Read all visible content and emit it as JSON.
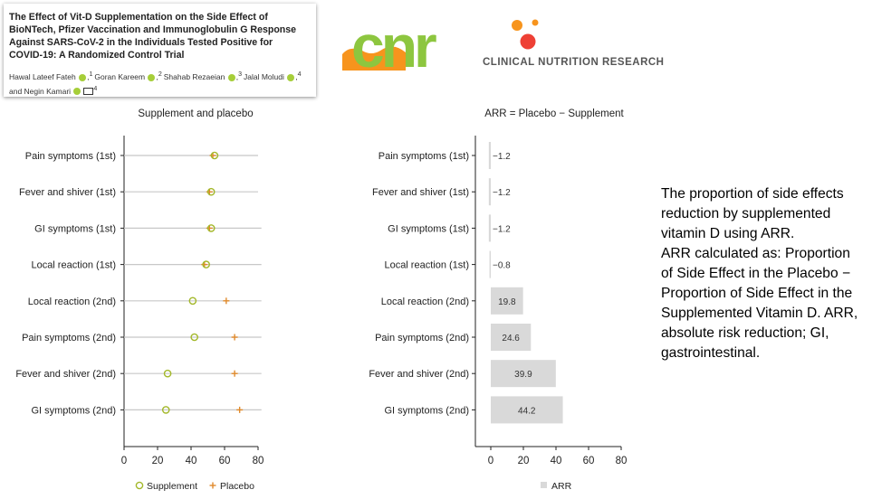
{
  "paper": {
    "title": "The Effect of Vit-D Supplementation on the Side Effect of\nBioNTech, Pfizer Vaccination and Immunoglobulin G Response\nAgainst SARS-CoV-2 in the Individuals Tested Positive for\nCOVID-19: A Randomized Control Trial",
    "authors": [
      {
        "name": "Hawal Lateef Fateh",
        "aff": "1"
      },
      {
        "name": "Goran Kareem",
        "aff": "2"
      },
      {
        "name": "Shahab Rezaeian",
        "aff": "3"
      },
      {
        "name": "Jalal Moludi",
        "aff": "4"
      },
      {
        "name": "Negin Kamari",
        "aff": "4"
      }
    ],
    "author_separator": ",",
    "author_conjunction": "and"
  },
  "logo": {
    "wordmark": "cnr",
    "subtitle": "CLINICAL NUTRITION RESEARCH",
    "colors": {
      "green": "#8dc63f",
      "orange": "#f7941d",
      "red": "#ee4035"
    }
  },
  "side_text": "The proportion of side effects reduction by supplemented vitamin D using ARR.\nARR calculated as: Proportion of Side Effect in the Placebo − Proportion of Side Effect in the Supplemented Vitamin D. ARR, absolute risk reduction; GI, gastrointestinal.",
  "chart_data": [
    {
      "type": "scatter",
      "title": "Supplement and placebo",
      "categories": [
        "Pain symptoms (1st)",
        "Fever and shiver (1st)",
        "GI symptoms (1st)",
        "Local reaction (1st)",
        "Local reaction (2nd)",
        "Pain symptoms (2nd)",
        "Fever and shiver (2nd)",
        "GI symptoms (2nd)"
      ],
      "range_line_max": [
        80,
        80,
        82,
        82,
        82,
        82,
        82,
        82
      ],
      "series": [
        {
          "name": "Supplement",
          "marker": "circle",
          "color": "#a3b82a",
          "values": [
            54,
            52,
            52,
            49,
            41,
            42,
            26,
            25
          ]
        },
        {
          "name": "Placebo",
          "marker": "plus",
          "color": "#e08a2c",
          "values": [
            53,
            51,
            51,
            48,
            61,
            66,
            66,
            69
          ]
        }
      ],
      "xlim": [
        0,
        80
      ],
      "xticks": [
        0,
        20,
        40,
        60,
        80
      ],
      "legend_position": "bottom",
      "line_color": "#c8c8c8"
    },
    {
      "type": "bar",
      "title": "ARR = Placebo − Supplement",
      "categories": [
        "Pain symptoms (1st)",
        "Fever and shiver (1st)",
        "GI symptoms (1st)",
        "Local reaction (1st)",
        "Local reaction (2nd)",
        "Pain symptoms (2nd)",
        "Fever and shiver (2nd)",
        "GI symptoms (2nd)"
      ],
      "values": [
        -1.2,
        -1.2,
        -1.2,
        -0.8,
        19.8,
        24.6,
        39.9,
        44.2
      ],
      "value_labels": [
        "−1.2",
        "−1.2",
        "−1.2",
        "−0.8",
        "19.8",
        "24.6",
        "39.9",
        "44.2"
      ],
      "series": [
        {
          "name": "ARR",
          "color": "#d9d9d9"
        }
      ],
      "xlim": [
        0,
        80
      ],
      "xticks": [
        0,
        20,
        40,
        60,
        80
      ],
      "legend_position": "bottom"
    }
  ]
}
